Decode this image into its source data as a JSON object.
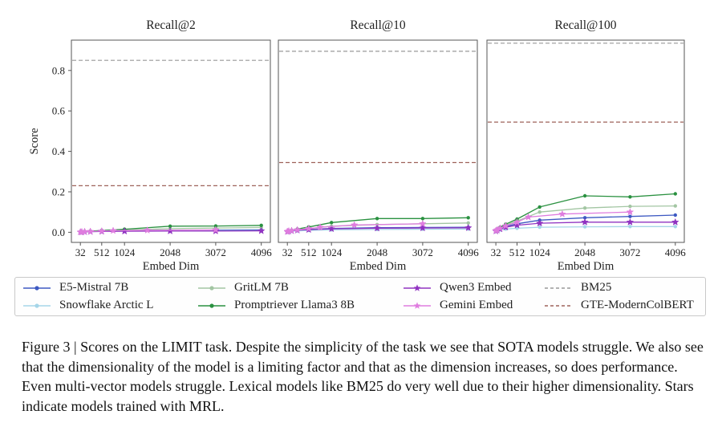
{
  "chart_data": {
    "type": "line",
    "xlabel": "Embed Dim",
    "ylabel": "Score",
    "x_ticks": [
      32,
      512,
      1024,
      2048,
      3072,
      4096
    ],
    "y_ticks": [
      0.0,
      0.2,
      0.4,
      0.6,
      0.8
    ],
    "xlim": [
      -170,
      4300
    ],
    "ylim": [
      -0.05,
      0.95
    ],
    "grid": false,
    "legend_position": "below",
    "subplots": [
      {
        "title": "Recall@2",
        "metric": "recall2"
      },
      {
        "title": "Recall@10",
        "metric": "recall10"
      },
      {
        "title": "Recall@100",
        "metric": "recall100"
      }
    ],
    "series": [
      {
        "name": "E5-Mistral 7B",
        "color": "#3d59c2",
        "marker": "circle",
        "x": [
          32,
          64,
          128,
          256,
          512,
          1024,
          2048,
          3072,
          4096
        ],
        "recall2": [
          0.001,
          0.002,
          0.003,
          0.004,
          0.006,
          0.008,
          0.01,
          0.011,
          0.012
        ],
        "recall10": [
          0.004,
          0.005,
          0.007,
          0.01,
          0.014,
          0.019,
          0.023,
          0.024,
          0.025
        ],
        "recall100": [
          0.008,
          0.012,
          0.018,
          0.028,
          0.042,
          0.06,
          0.072,
          0.078,
          0.085
        ]
      },
      {
        "name": "Snowflake Arctic L",
        "color": "#a5d5e8",
        "marker": "circle",
        "x": [
          32,
          64,
          128,
          256,
          512,
          1024,
          2048,
          3072,
          4096
        ],
        "recall2": [
          0.001,
          0.001,
          0.002,
          0.003,
          0.004,
          0.006,
          0.007,
          0.008,
          0.008
        ],
        "recall10": [
          0.002,
          0.003,
          0.005,
          0.007,
          0.009,
          0.012,
          0.014,
          0.015,
          0.016
        ],
        "recall100": [
          0.005,
          0.008,
          0.012,
          0.016,
          0.02,
          0.025,
          0.027,
          0.028,
          0.028
        ]
      },
      {
        "name": "GritLM 7B",
        "color": "#a3c6a3",
        "marker": "circle",
        "x": [
          32,
          64,
          128,
          256,
          512,
          1024,
          2048,
          3072,
          4096
        ],
        "recall2": [
          0.002,
          0.002,
          0.003,
          0.005,
          0.007,
          0.011,
          0.018,
          0.021,
          0.024
        ],
        "recall10": [
          0.004,
          0.006,
          0.008,
          0.012,
          0.018,
          0.03,
          0.038,
          0.042,
          0.046
        ],
        "recall100": [
          0.01,
          0.015,
          0.022,
          0.035,
          0.055,
          0.1,
          0.12,
          0.128,
          0.13
        ]
      },
      {
        "name": "Promptriever Llama3 8B",
        "color": "#2a9140",
        "marker": "circle",
        "x": [
          32,
          64,
          128,
          256,
          512,
          1024,
          2048,
          3072,
          4096
        ],
        "recall2": [
          0.002,
          0.003,
          0.004,
          0.006,
          0.009,
          0.015,
          0.03,
          0.031,
          0.034
        ],
        "recall10": [
          0.005,
          0.007,
          0.01,
          0.016,
          0.026,
          0.048,
          0.068,
          0.068,
          0.072
        ],
        "recall100": [
          0.01,
          0.015,
          0.025,
          0.04,
          0.065,
          0.125,
          0.18,
          0.175,
          0.19
        ]
      },
      {
        "name": "Qwen3 Embed",
        "color": "#9033c1",
        "marker": "star",
        "x": [
          32,
          64,
          128,
          256,
          512,
          1024,
          2048,
          3072,
          4096
        ],
        "recall2": [
          0.001,
          0.001,
          0.002,
          0.003,
          0.004,
          0.005,
          0.006,
          0.006,
          0.007
        ],
        "recall10": [
          0.003,
          0.005,
          0.007,
          0.01,
          0.013,
          0.017,
          0.02,
          0.021,
          0.022
        ],
        "recall100": [
          0.006,
          0.01,
          0.016,
          0.025,
          0.035,
          0.045,
          0.05,
          0.05,
          0.05
        ]
      },
      {
        "name": "Gemini Embed",
        "color": "#df7ddf",
        "marker": "star",
        "x": [
          32,
          64,
          128,
          256,
          512,
          768,
          1536,
          3072
        ],
        "recall2": [
          0.001,
          0.002,
          0.003,
          0.004,
          0.006,
          0.008,
          0.01,
          0.012
        ],
        "recall10": [
          0.004,
          0.006,
          0.008,
          0.012,
          0.018,
          0.025,
          0.036,
          0.042
        ],
        "recall100": [
          0.008,
          0.012,
          0.02,
          0.032,
          0.05,
          0.075,
          0.09,
          0.1
        ]
      }
    ],
    "baselines": [
      {
        "name": "BM25",
        "color": "#999999",
        "style": "dashed",
        "recall2": 0.85,
        "recall10": 0.895,
        "recall100": 0.935
      },
      {
        "name": "GTE-ModernColBERT",
        "color": "#9e625a",
        "style": "dashed",
        "recall2": 0.23,
        "recall10": 0.345,
        "recall100": 0.545
      }
    ]
  },
  "legend": {
    "columns": [
      [
        "E5-Mistral 7B",
        "Snowflake Arctic L"
      ],
      [
        "GritLM 7B",
        "Promptriever Llama3 8B"
      ],
      [
        "Qwen3 Embed",
        "Gemini Embed"
      ],
      [
        "BM25",
        "GTE-ModernColBERT"
      ]
    ]
  },
  "caption": {
    "text": "Figure 3 | Scores on the LIMIT task. Despite the simplicity of the task we see that SOTA models struggle. We also see that the dimensionality of the model is a limiting factor and that as the dimension increases, so does performance. Even multi-vector models struggle. Lexical models like BM25 do very well due to their higher dimensionality. Stars indicate models trained with MRL."
  }
}
